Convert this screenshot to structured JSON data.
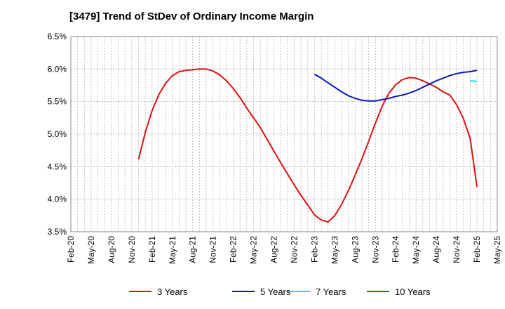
{
  "chart_data": {
    "type": "line",
    "title": "[3479]  Trend of StDev of Ordinary Income Margin",
    "xlabel": "",
    "ylabel": "",
    "ylim": [
      3.5,
      6.5
    ],
    "y_ticks": [
      "3.5%",
      "4.0%",
      "4.5%",
      "5.0%",
      "5.5%",
      "6.0%",
      "6.5%"
    ],
    "y_tick_values": [
      3.5,
      4.0,
      4.5,
      5.0,
      5.5,
      6.0,
      6.5
    ],
    "x_ticks": [
      "Feb-20",
      "May-20",
      "Aug-20",
      "Nov-20",
      "Feb-21",
      "May-21",
      "Aug-21",
      "Nov-21",
      "Feb-22",
      "May-22",
      "Aug-22",
      "Nov-22",
      "Feb-23",
      "May-23",
      "Aug-23",
      "Nov-23",
      "Feb-24",
      "May-24",
      "Aug-24",
      "Nov-24",
      "Feb-25",
      "May-25"
    ],
    "grid": true,
    "legend_position": "bottom",
    "series": [
      {
        "name": "3 Years",
        "color": "#dd1111",
        "x": [
          "Dec-20",
          "Jan-21",
          "Feb-21",
          "Mar-21",
          "Apr-21",
          "May-21",
          "Jun-21",
          "Jul-21",
          "Aug-21",
          "Sep-21",
          "Oct-21",
          "Nov-21",
          "Dec-21",
          "Jan-22",
          "Feb-22",
          "Mar-22",
          "Apr-22",
          "May-22",
          "Jun-22",
          "Jul-22",
          "Aug-22",
          "Sep-22",
          "Oct-22",
          "Nov-22",
          "Dec-22",
          "Jan-23",
          "Feb-23",
          "Mar-23",
          "Apr-23",
          "May-23",
          "Jun-23",
          "Jul-23",
          "Aug-23",
          "Sep-23",
          "Oct-23",
          "Nov-23",
          "Dec-23",
          "Jan-24",
          "Feb-24",
          "Mar-24",
          "Apr-24",
          "May-24",
          "Jun-24",
          "Jul-24",
          "Aug-24",
          "Sep-24",
          "Oct-24",
          "Nov-24",
          "Dec-24",
          "Jan-25",
          "Feb-25"
        ],
        "values": [
          4.61,
          5.03,
          5.36,
          5.61,
          5.78,
          5.9,
          5.96,
          5.98,
          5.99,
          6.0,
          6.0,
          5.97,
          5.91,
          5.82,
          5.7,
          5.56,
          5.4,
          5.25,
          5.1,
          4.92,
          4.74,
          4.56,
          4.39,
          4.22,
          4.06,
          3.91,
          3.76,
          3.68,
          3.65,
          3.75,
          3.92,
          4.13,
          4.37,
          4.62,
          4.89,
          5.17,
          5.43,
          5.63,
          5.76,
          5.84,
          5.87,
          5.86,
          5.82,
          5.77,
          5.72,
          5.65,
          5.6,
          5.45,
          5.24,
          4.93,
          4.19
        ]
      },
      {
        "name": "5 Years",
        "color": "#0a14c0",
        "x": [
          "Feb-23",
          "Mar-23",
          "Apr-23",
          "May-23",
          "Jun-23",
          "Jul-23",
          "Aug-23",
          "Sep-23",
          "Oct-23",
          "Nov-23",
          "Dec-23",
          "Jan-24",
          "Feb-24",
          "Mar-24",
          "Apr-24",
          "May-24",
          "Jun-24",
          "Jul-24",
          "Aug-24",
          "Sep-24",
          "Oct-24",
          "Nov-24",
          "Dec-24",
          "Jan-25",
          "Feb-25"
        ],
        "values": [
          5.92,
          5.86,
          5.79,
          5.72,
          5.65,
          5.59,
          5.55,
          5.52,
          5.51,
          5.51,
          5.53,
          5.55,
          5.58,
          5.6,
          5.63,
          5.67,
          5.72,
          5.77,
          5.82,
          5.86,
          5.9,
          5.93,
          5.95,
          5.96,
          5.98
        ]
      },
      {
        "name": "7 Years",
        "color": "#22dddd",
        "x": [
          "Jan-25",
          "Feb-25"
        ],
        "values": [
          5.82,
          5.81
        ]
      },
      {
        "name": "10 Years",
        "color": "#118811",
        "x": [],
        "values": []
      }
    ]
  }
}
